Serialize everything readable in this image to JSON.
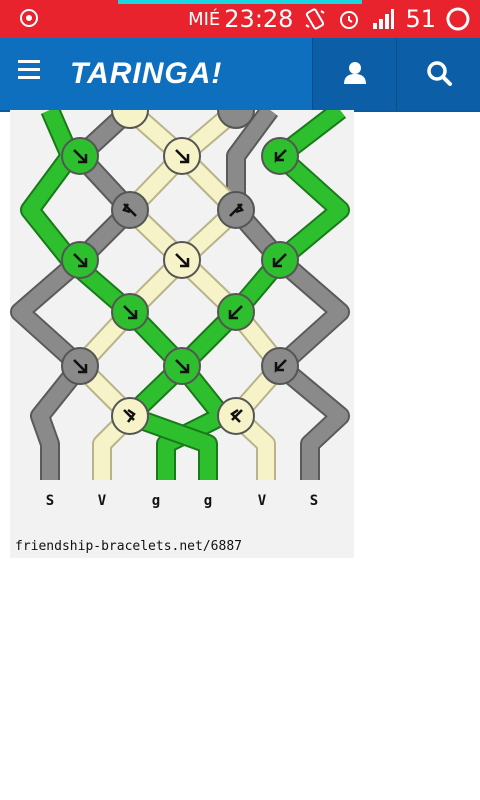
{
  "status_bar": {
    "day": "MIÉ",
    "time": "23:28",
    "battery": "51",
    "icons": [
      "location-icon",
      "vibrate-icon",
      "alarm-icon",
      "signal-icon",
      "battery-icon"
    ]
  },
  "app_bar": {
    "brand": "TARINGA!",
    "icons": [
      "menu-icon",
      "user-icon",
      "search-icon"
    ]
  },
  "pattern": {
    "string_labels": [
      "S",
      "V",
      "g",
      "g",
      "V",
      "S"
    ],
    "source": "friendship-bracelets.net/6887"
  },
  "colors": {
    "accent": "#0f6fbf",
    "status": "#e8232d",
    "green": "#2ebf2e",
    "gray": "#8a8a8a",
    "cream": "#f7f3c8"
  }
}
